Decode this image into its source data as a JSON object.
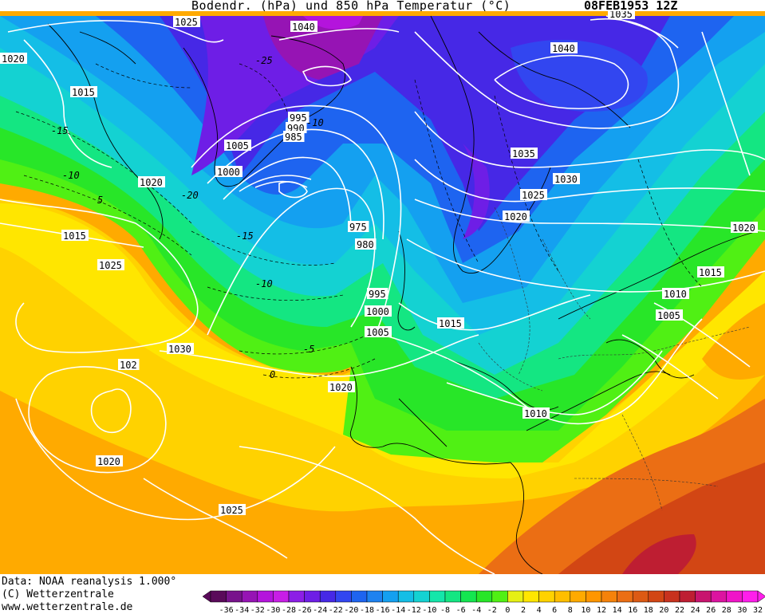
{
  "header": {
    "title": "Bodendr. (hPa) und 850 hPa Temperatur (°C)",
    "datestamp": "08FEB1953 12Z"
  },
  "footer": {
    "data_source": "Data: NOAA reanalysis 1.000°",
    "copyright": "(C) Wetterzentrale",
    "website": "www.wetterzentrale.de"
  },
  "map": {
    "pressure_labels": [
      "1025",
      "1040",
      "1035",
      "1020",
      "1015",
      "1040",
      "1035",
      "1030",
      "1025",
      "1020",
      "1015",
      "1020",
      "1025",
      "1005",
      "1000",
      "995",
      "990",
      "985",
      "975",
      "980",
      "995",
      "1000",
      "1005",
      "1015",
      "1030",
      "1020",
      "102",
      "1020",
      "1025",
      "1010",
      "1005",
      "1015",
      "1020",
      "1010"
    ],
    "temperature_labels": [
      "-25",
      "-15",
      "-10",
      "-20",
      "-15",
      "-10",
      "-5",
      "0",
      "-10",
      "5"
    ]
  },
  "colorbar": {
    "ticks": [
      "-36",
      "-34",
      "-32",
      "-30",
      "-28",
      "-26",
      "-24",
      "-22",
      "-20",
      "-18",
      "-16",
      "-14",
      "-12",
      "-10",
      "-8",
      "-6",
      "-4",
      "-2",
      "0",
      "2",
      "4",
      "6",
      "8",
      "10",
      "12",
      "14",
      "16",
      "18",
      "20",
      "22",
      "24",
      "26",
      "28",
      "30",
      "32"
    ],
    "colors": [
      "#5a0a5a",
      "#78138c",
      "#9614b4",
      "#b414dc",
      "#c81ee6",
      "#8c1ee6",
      "#6e1ee6",
      "#4628e6",
      "#3246f0",
      "#1e64f0",
      "#1e82f0",
      "#14a0f0",
      "#14bee6",
      "#14d2d2",
      "#14e6aa",
      "#14e682",
      "#14e650",
      "#28e628",
      "#50f014",
      "#e6f014",
      "#ffe600",
      "#ffd200",
      "#ffbe00",
      "#ffaa00",
      "#ff9600",
      "#f5820a",
      "#eb6e14",
      "#dc5a14",
      "#d24614",
      "#c8321e",
      "#be1e32",
      "#c8146e",
      "#dc14a0",
      "#f014c8",
      "#ff1eeb"
    ]
  }
}
